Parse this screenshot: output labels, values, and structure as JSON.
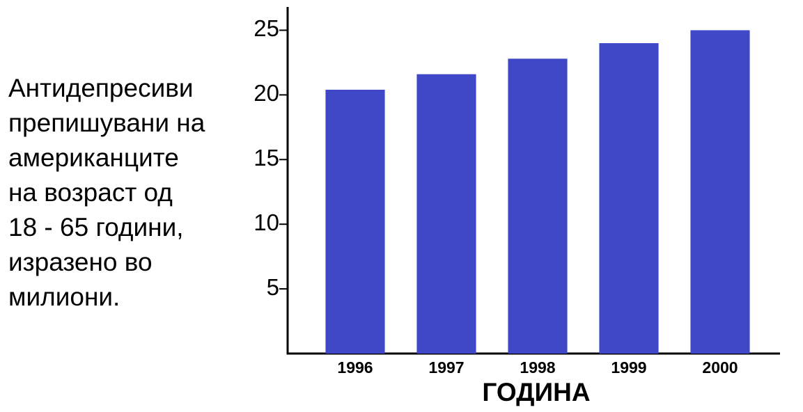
{
  "chart_data": {
    "type": "bar",
    "title": "Антидепресиви\nпрепишувани на\nамериканците\nна возраст од\n18 - 65 години,\nизразено во\nмилиони.",
    "x_label": "ГОДИНА",
    "categories": [
      "1996",
      "1997",
      "1998",
      "1999",
      "2000"
    ],
    "values": [
      20.4,
      21.6,
      22.8,
      24.0,
      25.0
    ],
    "color": "#4048c8",
    "ylim": [
      0,
      26.8
    ],
    "yticks": [
      5,
      10,
      15,
      20,
      25
    ],
    "grid": false
  }
}
